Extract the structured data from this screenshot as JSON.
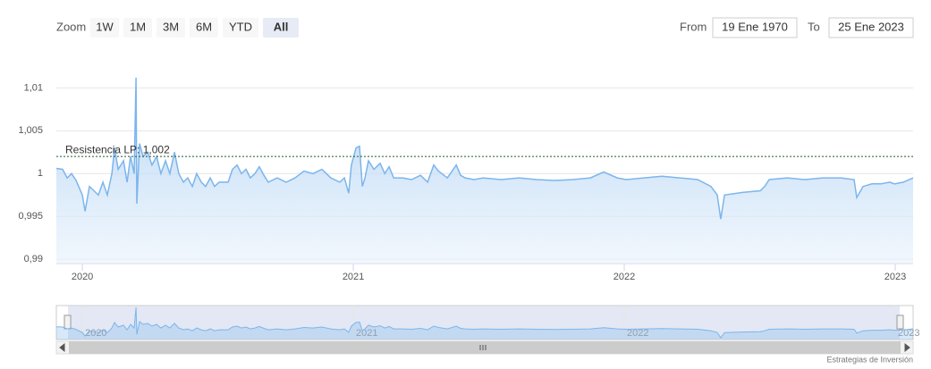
{
  "range_selector": {
    "label": "Zoom",
    "buttons": [
      "1W",
      "1M",
      "3M",
      "6M",
      "YTD",
      "All"
    ],
    "selected": 5
  },
  "date_inputs": {
    "from_label": "From",
    "from": "19 Ene 1970",
    "to_label": "To",
    "to": "25 Ene 2023"
  },
  "chart_data": {
    "type": "area",
    "x": [
      2019.904,
      2019.927,
      2019.944,
      2019.96,
      2019.977,
      2020.0,
      2020.01,
      2020.026,
      2020.043,
      2020.059,
      2020.076,
      2020.092,
      2020.109,
      2020.119,
      2020.132,
      2020.152,
      2020.165,
      2020.178,
      2020.191,
      2020.198,
      2020.201,
      2020.211,
      2020.224,
      2020.241,
      2020.257,
      2020.274,
      2020.29,
      2020.307,
      2020.323,
      2020.34,
      2020.356,
      2020.373,
      2020.389,
      2020.406,
      2020.422,
      2020.439,
      2020.455,
      2020.472,
      2020.488,
      2020.505,
      2020.521,
      2020.538,
      2020.554,
      2020.571,
      2020.587,
      2020.604,
      2020.62,
      2020.637,
      2020.653,
      2020.67,
      2020.686,
      2020.719,
      2020.752,
      2020.785,
      2020.818,
      2020.851,
      2020.884,
      2020.917,
      2020.95,
      2020.967,
      2020.983,
      2020.993,
      2021.01,
      2021.023,
      2021.033,
      2021.043,
      2021.056,
      2021.076,
      2021.099,
      2021.116,
      2021.132,
      2021.149,
      2021.182,
      2021.215,
      2021.248,
      2021.274,
      2021.297,
      2021.314,
      2021.347,
      2021.38,
      2021.396,
      2021.413,
      2021.446,
      2021.479,
      2021.545,
      2021.611,
      2021.677,
      2021.743,
      2021.809,
      2021.875,
      2021.924,
      2021.974,
      2022.007,
      2022.073,
      2022.139,
      2022.205,
      2022.271,
      2022.32,
      2022.343,
      2022.356,
      2022.37,
      2022.436,
      2022.502,
      2022.518,
      2022.535,
      2022.601,
      2022.667,
      2022.733,
      2022.799,
      2022.848,
      2022.858,
      2022.881,
      2022.914,
      2022.947,
      2022.98,
      2022.997,
      2023.03,
      2023.066
    ],
    "series": [
      {
        "color": "#7cb5ec",
        "values": [
          1.0006,
          1.0005,
          0.9995,
          1.0,
          0.9992,
          0.9975,
          0.9956,
          0.9985,
          0.998,
          0.9975,
          0.999,
          0.9975,
          1.0,
          1.003,
          1.0005,
          1.0015,
          0.999,
          1.002,
          1.0,
          1.0112,
          0.9965,
          1.0035,
          1.002,
          1.0025,
          1.001,
          1.002,
          1.0,
          1.0015,
          1.0,
          1.0025,
          1.0,
          0.999,
          0.9995,
          0.9985,
          1.0,
          0.999,
          0.9985,
          0.9995,
          0.9985,
          0.999,
          0.999,
          0.999,
          1.0005,
          1.001,
          1.0,
          1.0005,
          0.9995,
          1.0,
          1.0008,
          0.9998,
          0.999,
          0.9995,
          0.999,
          0.9995,
          1.0003,
          1.0,
          1.0005,
          0.9995,
          0.999,
          0.9995,
          0.9977,
          1.001,
          1.003,
          1.0032,
          0.9985,
          0.9995,
          1.0015,
          1.0005,
          1.0012,
          1.0,
          1.0008,
          0.9995,
          0.9995,
          0.9993,
          0.9998,
          0.999,
          1.001,
          1.0003,
          0.9995,
          1.001,
          0.9998,
          0.9995,
          0.9993,
          0.9995,
          0.9993,
          0.9995,
          0.9993,
          0.9992,
          0.9993,
          0.9995,
          1.0002,
          0.9995,
          0.9993,
          0.9995,
          0.9997,
          0.9995,
          0.9993,
          0.9985,
          0.9975,
          0.9947,
          0.9975,
          0.9978,
          0.998,
          0.9985,
          0.9993,
          0.9995,
          0.9993,
          0.9995,
          0.9995,
          0.9993,
          0.9972,
          0.9985,
          0.9988,
          0.9988,
          0.999,
          0.9988,
          0.999,
          0.9995
        ]
      }
    ],
    "xlim": [
      2019.904,
      2023.066
    ],
    "xticks": [
      2020,
      2021,
      2022,
      2023
    ],
    "ylim": [
      0.9895,
      1.014
    ],
    "yticks": [
      {
        "value": 0.99,
        "label": "0,99"
      },
      {
        "value": 0.995,
        "label": "0,995"
      },
      1,
      {
        "value": 1.005,
        "label": "1,005"
      },
      {
        "value": 1.01,
        "label": "1,01"
      }
    ],
    "grid": true,
    "plot_lines": [
      {
        "value": 1.002,
        "label": "Resistencia LP: 1,002",
        "color": "#1b5e20"
      }
    ]
  },
  "credits": "Estrategias de Inversión"
}
